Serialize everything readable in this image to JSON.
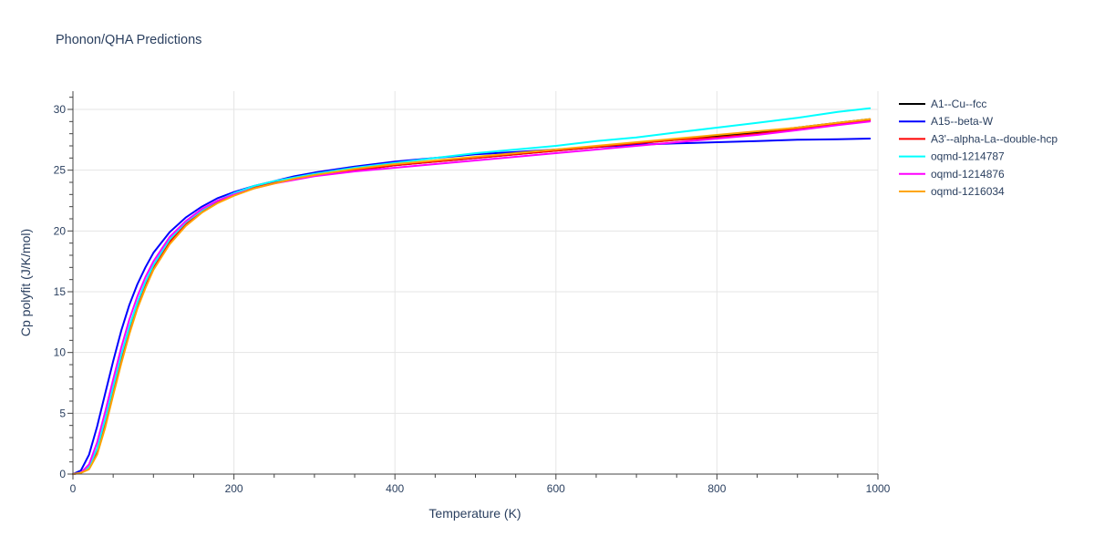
{
  "chart_data": {
    "type": "line",
    "title": "Phonon/QHA Predictions",
    "xlabel": "Temperature (K)",
    "ylabel": "Cp polyfit (J/K/mol)",
    "xlim": [
      0,
      1000
    ],
    "ylim": [
      0,
      31.5
    ],
    "xticks": [
      0,
      200,
      400,
      600,
      800,
      1000
    ],
    "yticks": [
      0,
      5,
      10,
      15,
      20,
      25,
      30
    ],
    "grid": true,
    "legend_position": "top-right",
    "series": [
      {
        "name": "A1--Cu--fcc",
        "color": "#000000",
        "x": [
          0,
          10,
          20,
          30,
          40,
          50,
          60,
          70,
          80,
          90,
          100,
          120,
          140,
          160,
          180,
          200,
          225,
          250,
          275,
          300,
          350,
          400,
          450,
          500,
          550,
          600,
          650,
          700,
          750,
          800,
          850,
          900,
          950,
          990
        ],
        "y": [
          0,
          0.1,
          0.5,
          1.9,
          4.2,
          6.9,
          9.5,
          11.9,
          13.9,
          15.6,
          17.0,
          19.1,
          20.6,
          21.6,
          22.4,
          23.0,
          23.6,
          24.0,
          24.3,
          24.6,
          25.0,
          25.4,
          25.7,
          26.0,
          26.3,
          26.6,
          26.9,
          27.2,
          27.5,
          27.8,
          28.1,
          28.5,
          28.9,
          29.2
        ]
      },
      {
        "name": "A15--beta-W",
        "color": "#0000ff",
        "x": [
          0,
          10,
          20,
          30,
          40,
          50,
          60,
          70,
          80,
          90,
          100,
          120,
          140,
          160,
          180,
          200,
          225,
          250,
          275,
          300,
          350,
          400,
          450,
          500,
          550,
          600,
          650,
          700,
          750,
          800,
          850,
          900,
          950,
          990
        ],
        "y": [
          0,
          0.3,
          1.6,
          3.9,
          6.6,
          9.3,
          11.8,
          13.9,
          15.6,
          17.0,
          18.2,
          19.9,
          21.1,
          22.0,
          22.7,
          23.2,
          23.7,
          24.1,
          24.5,
          24.8,
          25.3,
          25.7,
          26.0,
          26.3,
          26.5,
          26.7,
          26.9,
          27.1,
          27.2,
          27.3,
          27.4,
          27.5,
          27.55,
          27.6
        ]
      },
      {
        "name": "A3'--alpha-La--double-hcp",
        "color": "#ff0000",
        "x": [
          0,
          10,
          20,
          30,
          40,
          50,
          60,
          70,
          80,
          90,
          100,
          120,
          140,
          160,
          180,
          200,
          225,
          250,
          275,
          300,
          350,
          400,
          450,
          500,
          550,
          600,
          650,
          700,
          750,
          800,
          850,
          900,
          950,
          990
        ],
        "y": [
          0,
          0.1,
          0.5,
          1.9,
          4.2,
          6.9,
          9.5,
          11.9,
          13.9,
          15.6,
          17.0,
          19.1,
          20.6,
          21.6,
          22.4,
          23.0,
          23.6,
          24.0,
          24.3,
          24.6,
          25.0,
          25.4,
          25.7,
          26.0,
          26.3,
          26.6,
          26.9,
          27.2,
          27.5,
          27.7,
          28.0,
          28.4,
          28.8,
          29.1
        ]
      },
      {
        "name": "oqmd-1214787",
        "color": "#00ffff",
        "x": [
          0,
          10,
          20,
          30,
          40,
          50,
          60,
          70,
          80,
          90,
          100,
          120,
          140,
          160,
          180,
          200,
          225,
          250,
          275,
          300,
          350,
          400,
          450,
          500,
          550,
          600,
          650,
          700,
          750,
          800,
          850,
          900,
          950,
          990
        ],
        "y": [
          0,
          0.1,
          0.6,
          2.1,
          4.5,
          7.2,
          9.8,
          12.1,
          14.1,
          15.8,
          17.2,
          19.3,
          20.7,
          21.7,
          22.5,
          23.1,
          23.7,
          24.1,
          24.4,
          24.7,
          25.2,
          25.6,
          26.0,
          26.4,
          26.7,
          27.0,
          27.4,
          27.7,
          28.1,
          28.5,
          28.9,
          29.3,
          29.8,
          30.1
        ]
      },
      {
        "name": "oqmd-1214876",
        "color": "#ff00ff",
        "x": [
          0,
          10,
          20,
          30,
          40,
          50,
          60,
          70,
          80,
          90,
          100,
          120,
          140,
          160,
          180,
          200,
          225,
          250,
          275,
          300,
          350,
          400,
          450,
          500,
          550,
          600,
          650,
          700,
          750,
          800,
          850,
          900,
          950,
          990
        ],
        "y": [
          0,
          0.1,
          0.8,
          2.6,
          5.1,
          7.8,
          10.4,
          12.7,
          14.6,
          16.2,
          17.5,
          19.5,
          20.8,
          21.8,
          22.5,
          23.0,
          23.5,
          23.9,
          24.2,
          24.5,
          24.9,
          25.2,
          25.5,
          25.8,
          26.1,
          26.4,
          26.7,
          27.0,
          27.3,
          27.6,
          27.9,
          28.3,
          28.7,
          29.0
        ]
      },
      {
        "name": "oqmd-1216034",
        "color": "#ffa500",
        "x": [
          0,
          10,
          20,
          30,
          40,
          50,
          60,
          70,
          80,
          90,
          100,
          120,
          140,
          160,
          180,
          200,
          225,
          250,
          275,
          300,
          350,
          400,
          450,
          500,
          550,
          600,
          650,
          700,
          750,
          800,
          850,
          900,
          950,
          990
        ],
        "y": [
          0,
          0.1,
          0.4,
          1.6,
          3.8,
          6.5,
          9.1,
          11.5,
          13.6,
          15.3,
          16.8,
          18.9,
          20.4,
          21.5,
          22.3,
          22.9,
          23.5,
          23.9,
          24.3,
          24.6,
          25.1,
          25.5,
          25.8,
          26.1,
          26.4,
          26.7,
          27.0,
          27.3,
          27.6,
          27.9,
          28.2,
          28.5,
          28.9,
          29.2
        ]
      }
    ]
  }
}
